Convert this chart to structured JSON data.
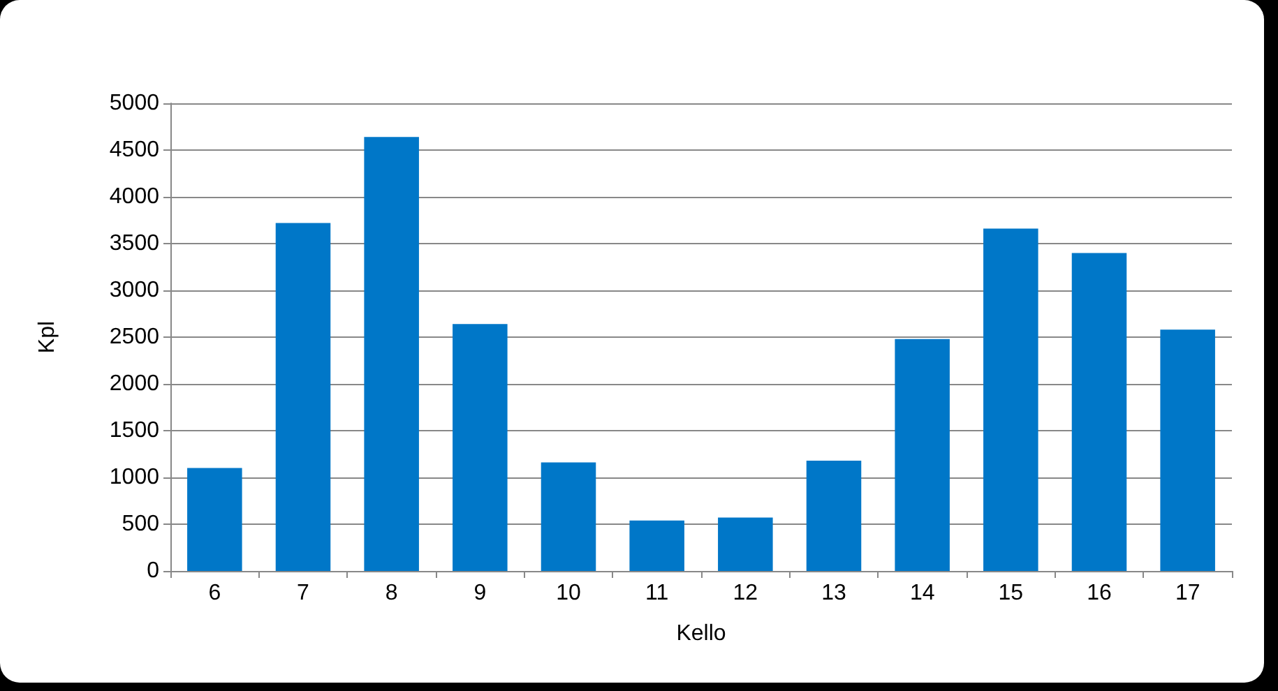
{
  "chart_data": {
    "type": "bar",
    "xlabel": "Kello",
    "ylabel": "Kpl",
    "categories": [
      "6",
      "7",
      "8",
      "9",
      "10",
      "11",
      "12",
      "13",
      "14",
      "15",
      "16",
      "17"
    ],
    "values": [
      1100,
      3720,
      4640,
      2640,
      1160,
      540,
      570,
      1180,
      2480,
      3660,
      3400,
      2580
    ],
    "color": "#0077c8",
    "ylim": [
      0,
      5000
    ],
    "yticks": [
      0,
      500,
      1000,
      1500,
      2000,
      2500,
      3000,
      3500,
      4000,
      4500,
      5000
    ],
    "grid": "y"
  }
}
